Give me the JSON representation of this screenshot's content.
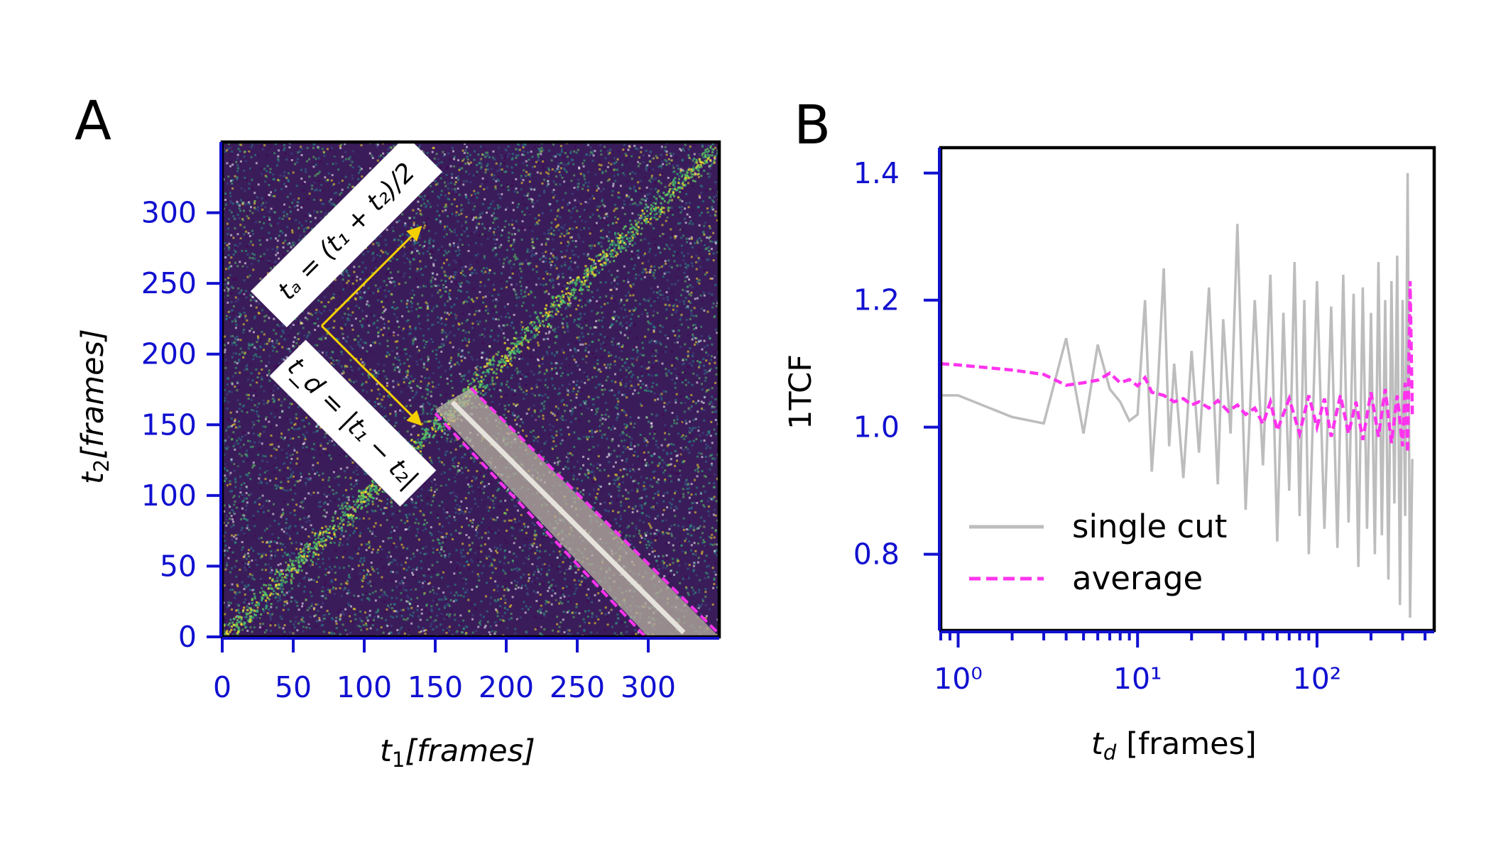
{
  "panels": {
    "a": {
      "label": "A",
      "xlabel_var": "t",
      "xlabel_sub": "1",
      "xlabel_unit": "[frames]",
      "ylabel_var": "t",
      "ylabel_sub": "2",
      "ylabel_unit": "[frames]",
      "annot_ta": "tₐ = (t₁ + t₂)/2",
      "annot_td": "t_d = |t₁ − t₂|"
    },
    "b": {
      "label": "B",
      "xlabel_var": "t",
      "xlabel_sub": "d",
      "xlabel_unit": "[frames]",
      "ylabel": "1TCF",
      "legend": [
        "single cut",
        "average"
      ]
    }
  },
  "colors": {
    "tick": "#1010d0",
    "single_cut": "#bdbdbd",
    "average": "#ff33ee",
    "heatmap_bg": "#3b1c5a",
    "highlight": "#ffee00",
    "arrow": "#f5d000"
  },
  "chart_data": [
    {
      "type": "heatmap",
      "title": "",
      "xlabel": "t1[frames]",
      "ylabel": "t2[frames]",
      "xlim": [
        0,
        350
      ],
      "ylim": [
        0,
        350
      ],
      "xticks": [
        "0",
        "50",
        "100",
        "150",
        "200",
        "250",
        "300"
      ],
      "yticks": [
        "0",
        "50",
        "100",
        "150",
        "200",
        "250",
        "300"
      ],
      "description_values": {
        "diagonal": "bright band along t1 = t2",
        "cut_td_range": [
          150,
          350
        ],
        "cut_center_ta": 165
      }
    },
    {
      "type": "line",
      "title": "",
      "xlabel": "td [frames]",
      "ylabel": "1TCF",
      "xscale": "log",
      "xlim": [
        0.8,
        450
      ],
      "ylim": [
        0.68,
        1.44
      ],
      "xticks": [
        "10⁰",
        "10¹",
        "10²"
      ],
      "yticks": [
        "0.8",
        "1.0",
        "1.2",
        "1.4"
      ],
      "legend_position": "lower-left",
      "series": [
        {
          "name": "single cut",
          "x": [
            0.8,
            1,
            2,
            3,
            4,
            5,
            6,
            7,
            8,
            9,
            10,
            11,
            12,
            13,
            14,
            15,
            16,
            18,
            20,
            22,
            25,
            28,
            30,
            33,
            36,
            40,
            45,
            50,
            55,
            60,
            65,
            70,
            75,
            80,
            85,
            90,
            100,
            110,
            120,
            130,
            140,
            150,
            160,
            170,
            180,
            190,
            200,
            210,
            220,
            230,
            240,
            250,
            260,
            270,
            280,
            290,
            300,
            310,
            320,
            330,
            340
          ],
          "y": [
            1.05,
            1.05,
            1.016,
            1.006,
            1.14,
            0.99,
            1.13,
            1.06,
            1.04,
            1.01,
            1.02,
            1.2,
            0.93,
            1.07,
            1.25,
            0.97,
            1.1,
            0.92,
            1.12,
            0.96,
            1.22,
            0.91,
            1.17,
            0.99,
            1.32,
            0.87,
            1.2,
            0.94,
            1.24,
            0.82,
            1.18,
            0.9,
            1.26,
            0.86,
            1.2,
            0.8,
            1.23,
            0.84,
            1.19,
            0.81,
            1.24,
            0.85,
            1.21,
            0.78,
            1.22,
            0.84,
            1.18,
            0.8,
            1.26,
            0.83,
            1.2,
            0.76,
            1.23,
            0.88,
            1.27,
            0.72,
            1.2,
            0.86,
            1.4,
            0.7,
            0.95
          ]
        },
        {
          "name": "average",
          "x": [
            0.8,
            1,
            2,
            3,
            4,
            5,
            6,
            7,
            8,
            9,
            10,
            11,
            12,
            14,
            16,
            18,
            20,
            22,
            25,
            28,
            32,
            36,
            40,
            45,
            50,
            55,
            60,
            70,
            80,
            90,
            100,
            110,
            120,
            135,
            150,
            165,
            180,
            200,
            220,
            240,
            260,
            280,
            300,
            310,
            320,
            330,
            340
          ],
          "y": [
            1.1,
            1.098,
            1.09,
            1.083,
            1.066,
            1.07,
            1.074,
            1.085,
            1.07,
            1.075,
            1.065,
            1.078,
            1.055,
            1.05,
            1.04,
            1.045,
            1.035,
            1.04,
            1.03,
            1.042,
            1.025,
            1.035,
            1.02,
            1.03,
            1.005,
            1.04,
            0.995,
            1.045,
            0.99,
            1.05,
            1.0,
            1.045,
            0.985,
            1.05,
            0.99,
            1.04,
            0.98,
            1.055,
            0.985,
            1.06,
            0.975,
            1.05,
            0.97,
            1.07,
            0.96,
            1.23,
            1.02
          ]
        }
      ]
    }
  ]
}
